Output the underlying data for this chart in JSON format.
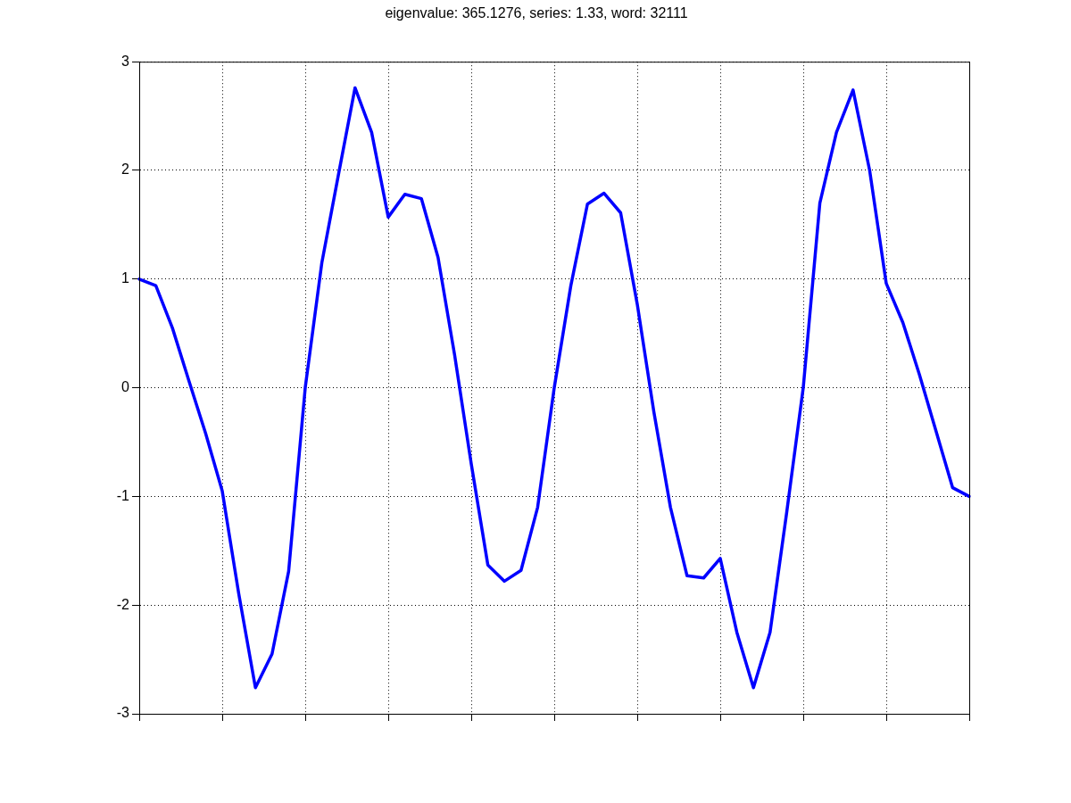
{
  "chart_data": {
    "type": "line",
    "title": "eigenvalue: 365.1276, series: 1.33, word: 32111",
    "categories": [
      null,
      null,
      null,
      null,
      null,
      null,
      null,
      null,
      null,
      null,
      null,
      null,
      null,
      null,
      null,
      null,
      null,
      null,
      null,
      null,
      null,
      null,
      null,
      null,
      null,
      null,
      null,
      null,
      null,
      null,
      null,
      null,
      null,
      null,
      null,
      null,
      null,
      null,
      null,
      null,
      null,
      null,
      null,
      null,
      null,
      null,
      null,
      null,
      null,
      null,
      null
    ],
    "series": [
      {
        "color": "#0000ff",
        "values": [
          1.0,
          0.94,
          0.55,
          0.06,
          -0.42,
          -0.95,
          -1.9,
          -2.76,
          -2.45,
          -1.69,
          0,
          1.15,
          1.96,
          2.76,
          2.35,
          1.57,
          1.78,
          1.74,
          1.2,
          0.3,
          -0.7,
          -1.63,
          -1.78,
          -1.68,
          -1.1,
          0,
          0.94,
          1.69,
          1.79,
          1.61,
          0.77,
          -0.22,
          -1.1,
          -1.73,
          -1.75,
          -1.57,
          -2.25,
          -2.76,
          -2.25,
          -1.15,
          0,
          1.7,
          2.35,
          2.74,
          2.0,
          0.96,
          0.6,
          0.12,
          -0.4,
          -0.92,
          -1.0
        ]
      }
    ],
    "ylim": [
      -3,
      3
    ],
    "yticks": [
      -3,
      -2,
      -1,
      0,
      1,
      2,
      3
    ],
    "grid": true,
    "line_style": "solid"
  }
}
